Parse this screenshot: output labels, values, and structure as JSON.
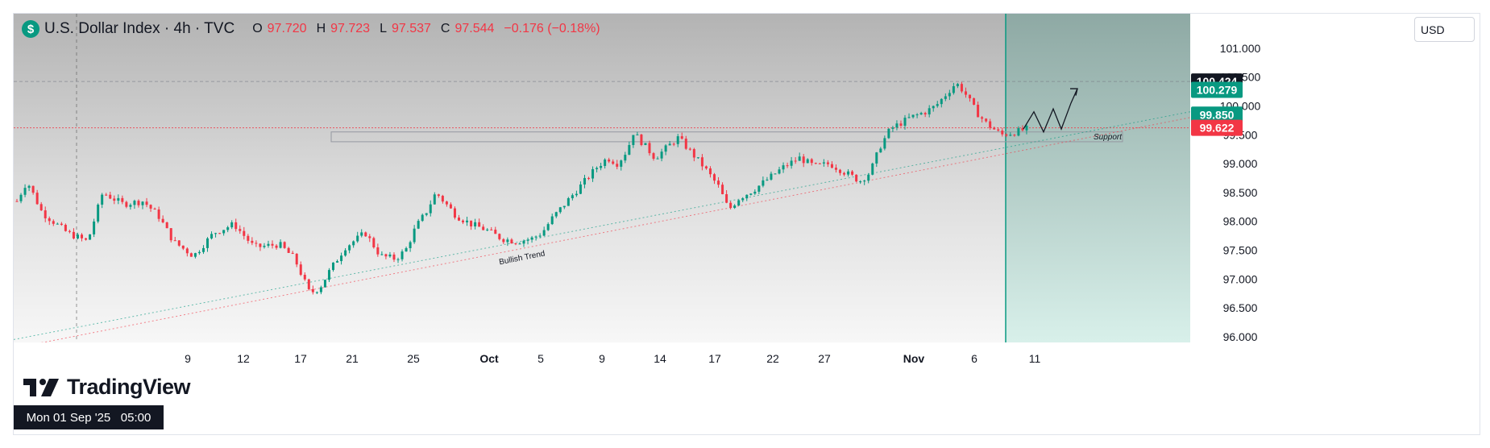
{
  "header": {
    "title": "U.S. Dollar Index · 4h · TVC",
    "open_key": "O",
    "open": "97.720",
    "high_key": "H",
    "high": "97.723",
    "low_key": "L",
    "low": "97.537",
    "close_key": "C",
    "close": "97.544",
    "change": "−0.176 (−0.18%)"
  },
  "currency_selector": "USD",
  "crosshair_date": "Mon 01 Sep '25   05:00",
  "brand": "TradingView",
  "colors": {
    "up": "#089981",
    "down": "#f23645",
    "projection_fill": "#a9d9d0",
    "price_tag_dark": "#131722",
    "price_tag_green": "#089981",
    "price_tag_red": "#f23645"
  },
  "chart_data": {
    "type": "candlestick",
    "symbol": "U.S. Dollar Index",
    "interval": "4h",
    "source": "TVC",
    "ylim": [
      95.9,
      101.6
    ],
    "price_ticks": [
      "101.000",
      "100.500",
      "100.000",
      "99.500",
      "99.000",
      "98.500",
      "98.000",
      "97.500",
      "97.000",
      "96.500",
      "96.000"
    ],
    "x_ticks": [
      "9",
      "12",
      "17",
      "21",
      "25",
      "Oct",
      "5",
      "9",
      "14",
      "17",
      "22",
      "27",
      "Nov",
      "6",
      "11"
    ],
    "price_tags": [
      {
        "value": "100.424",
        "style": "dark"
      },
      {
        "value": "100.279",
        "style": "green"
      },
      {
        "value": "99.850",
        "style": "green"
      },
      {
        "value": "99.622",
        "style": "red"
      }
    ],
    "close_path": [
      [
        0,
        98.35
      ],
      [
        10,
        98.7
      ],
      [
        25,
        98.15
      ],
      [
        50,
        97.8
      ],
      [
        70,
        97.65
      ],
      [
        85,
        98.5
      ],
      [
        105,
        98.3
      ],
      [
        125,
        98.35
      ],
      [
        140,
        98.1
      ],
      [
        155,
        97.65
      ],
      [
        175,
        97.4
      ],
      [
        195,
        97.8
      ],
      [
        215,
        97.95
      ],
      [
        235,
        97.55
      ],
      [
        260,
        97.6
      ],
      [
        275,
        97.35
      ],
      [
        290,
        96.75
      ],
      [
        300,
        96.85
      ],
      [
        310,
        97.15
      ],
      [
        325,
        97.55
      ],
      [
        345,
        97.8
      ],
      [
        360,
        97.4
      ],
      [
        375,
        97.35
      ],
      [
        385,
        97.5
      ],
      [
        395,
        97.9
      ],
      [
        405,
        98.15
      ],
      [
        415,
        98.5
      ],
      [
        425,
        98.3
      ],
      [
        435,
        98.1
      ],
      [
        450,
        97.95
      ],
      [
        465,
        97.85
      ],
      [
        480,
        97.7
      ],
      [
        495,
        97.65
      ],
      [
        510,
        97.7
      ],
      [
        520,
        97.8
      ],
      [
        530,
        98.05
      ],
      [
        540,
        98.25
      ],
      [
        555,
        98.55
      ],
      [
        565,
        98.75
      ],
      [
        575,
        98.95
      ],
      [
        585,
        99.1
      ],
      [
        595,
        99.0
      ],
      [
        605,
        99.25
      ],
      [
        610,
        99.55
      ],
      [
        620,
        99.35
      ],
      [
        632,
        99.1
      ],
      [
        645,
        99.3
      ],
      [
        655,
        99.45
      ],
      [
        665,
        99.25
      ],
      [
        680,
        98.95
      ],
      [
        695,
        98.6
      ],
      [
        705,
        98.2
      ],
      [
        715,
        98.4
      ],
      [
        730,
        98.55
      ],
      [
        745,
        98.75
      ],
      [
        760,
        98.95
      ],
      [
        775,
        99.1
      ],
      [
        790,
        98.95
      ],
      [
        805,
        99.0
      ],
      [
        820,
        98.85
      ],
      [
        835,
        98.7
      ],
      [
        845,
        98.85
      ],
      [
        855,
        99.3
      ],
      [
        865,
        99.6
      ],
      [
        875,
        99.7
      ],
      [
        885,
        99.8
      ],
      [
        900,
        99.9
      ],
      [
        910,
        100.0
      ],
      [
        920,
        100.2
      ],
      [
        930,
        100.4
      ],
      [
        938,
        100.25
      ],
      [
        950,
        99.9
      ],
      [
        960,
        99.7
      ],
      [
        975,
        99.5
      ],
      [
        990,
        99.55
      ],
      [
        1000,
        99.6
      ]
    ],
    "annotations": [
      {
        "text": "Bullish Trend",
        "type": "trend-line"
      },
      {
        "text": "Support",
        "type": "rectangle"
      }
    ],
    "grid": false,
    "legend": "top-left"
  }
}
